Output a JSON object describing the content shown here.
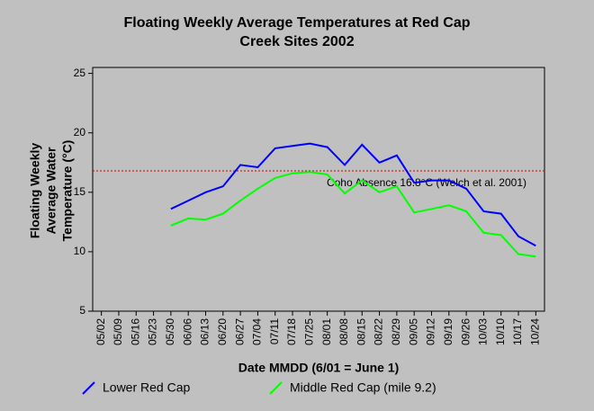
{
  "chart_data": {
    "type": "line",
    "title": [
      "Floating Weekly Average Temperatures at Red Cap",
      "Creek Sites 2002"
    ],
    "xlabel": "Date MMDD (6/01 = June 1)",
    "ylabel": [
      "Floating Weekly",
      "Average Water",
      "Temperature (°C)"
    ],
    "categories": [
      "05/02",
      "05/09",
      "05/16",
      "05/23",
      "05/30",
      "06/06",
      "06/13",
      "06/20",
      "06/27",
      "07/04",
      "07/11",
      "07/18",
      "07/25",
      "08/01",
      "08/08",
      "08/15",
      "08/22",
      "08/29",
      "09/05",
      "09/12",
      "09/19",
      "09/26",
      "10/03",
      "10/10",
      "10/17",
      "10/24"
    ],
    "series": [
      {
        "name": "Lower Red Cap",
        "color": "#0000ff",
        "values": [
          null,
          null,
          null,
          null,
          13.6,
          14.3,
          15.0,
          15.5,
          17.3,
          17.1,
          18.7,
          18.9,
          19.1,
          18.8,
          17.3,
          19.0,
          17.5,
          18.1,
          15.8,
          16.0,
          16.0,
          15.3,
          13.4,
          13.2,
          11.3,
          10.5
        ]
      },
      {
        "name": "Middle Red Cap (mile 9.2)",
        "color": "#00ff00",
        "values": [
          null,
          null,
          null,
          null,
          12.2,
          12.8,
          12.7,
          13.2,
          14.3,
          15.3,
          16.2,
          16.6,
          16.7,
          16.5,
          14.9,
          16.0,
          15.0,
          15.5,
          13.3,
          13.6,
          13.9,
          13.4,
          11.6,
          11.4,
          9.8,
          9.6
        ]
      }
    ],
    "reference_line": {
      "value": 16.8,
      "label": "Coho Absence 16.8°C (Welch et al. 2001)",
      "color": "#cc0000"
    },
    "ylim": [
      5,
      25.5
    ],
    "yticks": [
      5,
      10,
      15,
      20,
      25
    ]
  }
}
